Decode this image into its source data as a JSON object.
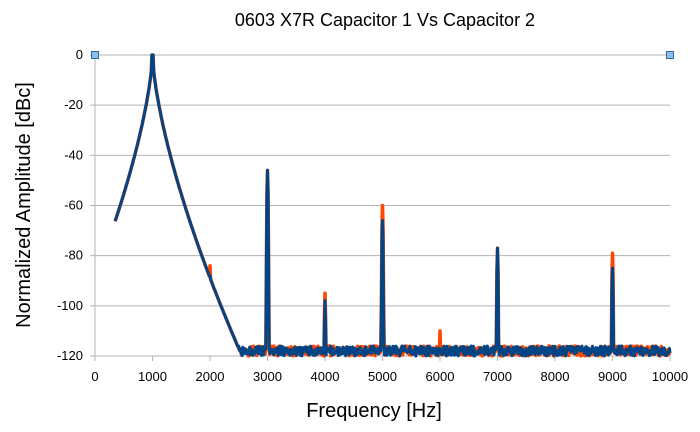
{
  "chart_data": {
    "type": "line",
    "title": "0603 X7R Capacitor 1 Vs Capacitor 2",
    "xlabel": "Frequency [Hz]",
    "ylabel": "Normalized Amplitude [dBc]",
    "xlim": [
      0,
      10000
    ],
    "ylim": [
      -120,
      0
    ],
    "x_ticks": [
      0,
      1000,
      2000,
      3000,
      4000,
      5000,
      6000,
      7000,
      8000,
      9000,
      10000
    ],
    "y_ticks": [
      0,
      -20,
      -40,
      -60,
      -80,
      -100,
      -120
    ],
    "grid": true,
    "noise_floor_db": -118,
    "x_start": 350,
    "series": [
      {
        "name": "Capacitor 1",
        "color": "#ff4500",
        "peaks": [
          {
            "freq": 1000,
            "db": 0
          },
          {
            "freq": 2000,
            "db": -84
          },
          {
            "freq": 3000,
            "db": -46
          },
          {
            "freq": 4000,
            "db": -95
          },
          {
            "freq": 5000,
            "db": -60
          },
          {
            "freq": 6000,
            "db": -110
          },
          {
            "freq": 7000,
            "db": -77
          },
          {
            "freq": 9000,
            "db": -79
          }
        ]
      },
      {
        "name": "Capacitor 2",
        "color": "#004586",
        "peaks": [
          {
            "freq": 1000,
            "db": 0
          },
          {
            "freq": 2000,
            "db": -88
          },
          {
            "freq": 3000,
            "db": -46
          },
          {
            "freq": 4000,
            "db": -98
          },
          {
            "freq": 5000,
            "db": -66
          },
          {
            "freq": 6000,
            "db": -117
          },
          {
            "freq": 7000,
            "db": -77
          },
          {
            "freq": 9000,
            "db": -85
          }
        ]
      }
    ]
  }
}
